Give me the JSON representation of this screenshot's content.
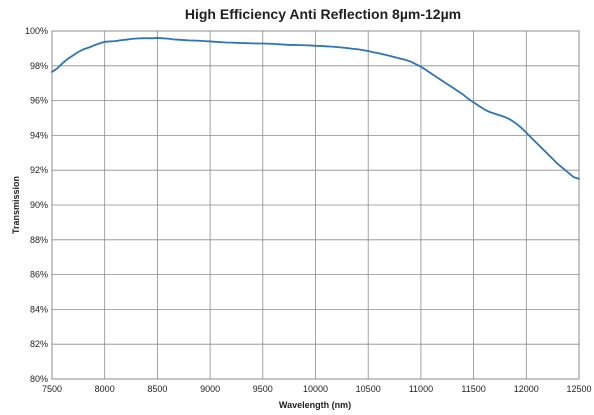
{
  "chart_data": {
    "type": "line",
    "title": "High Efficiency Anti Reflection 8µm-12µm",
    "xlabel": "Wavelength (nm)",
    "ylabel": "Transmission",
    "xlim": [
      7500,
      12500
    ],
    "ylim": [
      80,
      100
    ],
    "x_ticks": [
      7500,
      8000,
      8500,
      9000,
      9500,
      10000,
      10500,
      11000,
      11500,
      12000,
      12500
    ],
    "y_ticks": [
      80,
      82,
      84,
      86,
      88,
      90,
      92,
      94,
      96,
      98,
      100
    ],
    "y_tick_labels": [
      "80%",
      "82%",
      "84%",
      "86%",
      "88%",
      "90%",
      "92%",
      "94%",
      "96%",
      "98%",
      "100%"
    ],
    "grid": true,
    "legend": "none",
    "series": [
      {
        "color": "#2e75b6",
        "x": [
          7500,
          7550,
          7600,
          7650,
          7700,
          7750,
          7800,
          7850,
          7900,
          7950,
          8000,
          8050,
          8100,
          8150,
          8200,
          8250,
          8300,
          8350,
          8400,
          8450,
          8500,
          8550,
          8600,
          8650,
          8700,
          8750,
          8800,
          8850,
          8900,
          8950,
          9000,
          9050,
          9100,
          9150,
          9200,
          9250,
          9300,
          9350,
          9400,
          9450,
          9500,
          9550,
          9600,
          9650,
          9700,
          9750,
          9800,
          9850,
          9900,
          9950,
          10000,
          10050,
          10100,
          10150,
          10200,
          10250,
          10300,
          10350,
          10400,
          10450,
          10500,
          10550,
          10600,
          10650,
          10700,
          10750,
          10800,
          10850,
          10900,
          10950,
          11000,
          11050,
          11100,
          11150,
          11200,
          11250,
          11300,
          11350,
          11400,
          11450,
          11500,
          11550,
          11600,
          11650,
          11700,
          11750,
          11800,
          11850,
          11900,
          11950,
          12000,
          12050,
          12100,
          12150,
          12200,
          12250,
          12300,
          12350,
          12400,
          12450,
          12500
        ],
        "values": [
          97.65,
          97.85,
          98.15,
          98.4,
          98.6,
          98.8,
          98.95,
          99.05,
          99.18,
          99.28,
          99.38,
          99.4,
          99.42,
          99.47,
          99.5,
          99.54,
          99.57,
          99.58,
          99.59,
          99.58,
          99.6,
          99.58,
          99.56,
          99.52,
          99.5,
          99.48,
          99.46,
          99.45,
          99.44,
          99.42,
          99.4,
          99.38,
          99.36,
          99.34,
          99.33,
          99.32,
          99.31,
          99.3,
          99.29,
          99.28,
          99.28,
          99.27,
          99.26,
          99.24,
          99.22,
          99.2,
          99.2,
          99.19,
          99.18,
          99.17,
          99.15,
          99.14,
          99.12,
          99.1,
          99.08,
          99.05,
          99.02,
          98.98,
          98.95,
          98.9,
          98.85,
          98.78,
          98.72,
          98.65,
          98.58,
          98.5,
          98.42,
          98.35,
          98.25,
          98.1,
          97.95,
          97.75,
          97.55,
          97.35,
          97.15,
          96.95,
          96.75,
          96.55,
          96.35,
          96.1,
          95.9,
          95.7,
          95.5,
          95.35,
          95.25,
          95.15,
          95.05,
          94.9,
          94.7,
          94.45,
          94.15,
          93.85,
          93.55,
          93.25,
          92.95,
          92.65,
          92.35,
          92.1,
          91.85,
          91.6,
          91.5
        ]
      }
    ]
  }
}
